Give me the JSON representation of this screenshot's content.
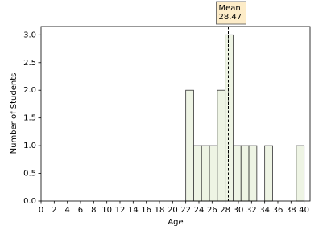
{
  "chart_data": {
    "type": "histogram",
    "xlabel": "Age",
    "ylabel": "Number of Students",
    "bins": [
      22,
      23.2,
      24.4,
      25.6,
      26.8,
      28,
      29.2,
      30.4,
      31.6,
      32.8,
      34,
      35.2,
      36.4,
      37.6,
      38.8,
      40
    ],
    "values": [
      2,
      1,
      1,
      1,
      2,
      3,
      1,
      1,
      1,
      0,
      1,
      0,
      0,
      0,
      1
    ],
    "color": "#eef4e4",
    "edgecolor": "#333333",
    "xlim": [
      0,
      40.9
    ],
    "ylim": [
      0,
      3.15
    ],
    "xticks": [
      0,
      2,
      4,
      6,
      8,
      10,
      12,
      14,
      16,
      18,
      20,
      22,
      24,
      26,
      28,
      30,
      32,
      34,
      36,
      38,
      40
    ],
    "yticks": [
      {
        "value": 0,
        "label": "0.0"
      },
      {
        "value": 0.5,
        "label": "0.5"
      },
      {
        "value": 1,
        "label": "1.0"
      },
      {
        "value": 1.5,
        "label": "1.5"
      },
      {
        "value": 2,
        "label": "2.0"
      },
      {
        "value": 2.5,
        "label": "2.5"
      },
      {
        "value": 3,
        "label": "3.0"
      }
    ],
    "mean": {
      "label": "Mean",
      "value": 28.47,
      "box_color": "#fdecc8"
    }
  }
}
